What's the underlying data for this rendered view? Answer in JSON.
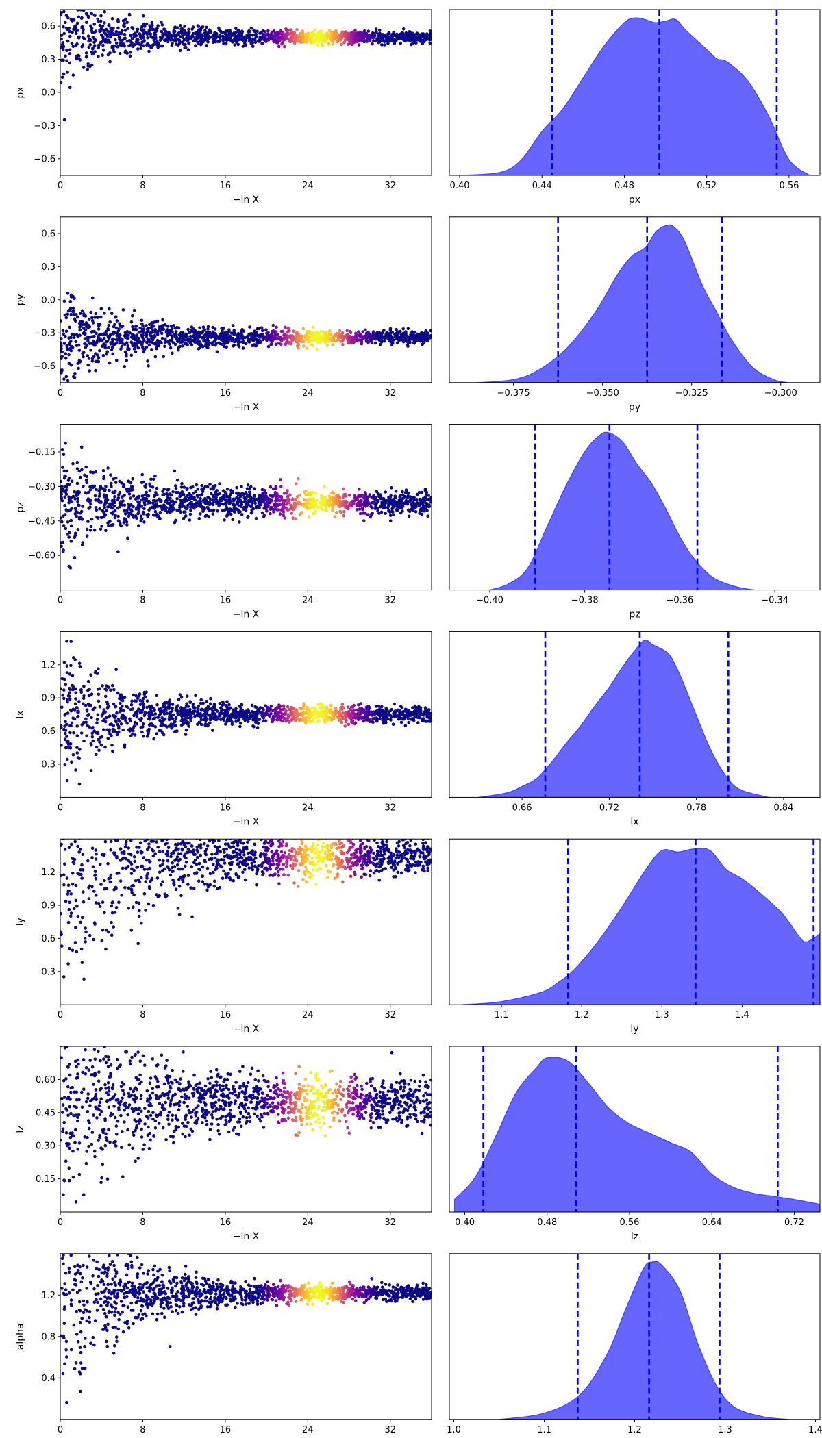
{
  "chart_data": [
    {
      "param": "px",
      "type": "scatter",
      "xlabel": "−ln X",
      "ylabel": "px",
      "xlim": [
        0,
        36
      ],
      "xticks": [
        0,
        8,
        16,
        24,
        32
      ],
      "ylim": [
        -0.75,
        0.75
      ],
      "yticks": [
        -0.6,
        -0.3,
        0.0,
        0.3,
        0.6
      ],
      "ytick_labels": [
        "−0.6",
        "−0.3",
        "0.0",
        "0.3",
        "0.6"
      ],
      "converge_value": 0.5,
      "converge_width": 0.03,
      "spread_scale": 0.24,
      "colormap": "plasma",
      "point_color": "#0d0887",
      "density": {
        "type": "area",
        "xlabel": "px",
        "xlim": [
          0.395,
          0.575
        ],
        "xticks": [
          0.4,
          0.44,
          0.48,
          0.52,
          0.56
        ],
        "xtick_labels": [
          "0.40",
          "0.44",
          "0.48",
          "0.52",
          "0.56"
        ],
        "curve": [
          [
            0.4,
            0.0
          ],
          [
            0.42,
            0.02
          ],
          [
            0.43,
            0.1
          ],
          [
            0.44,
            0.28
          ],
          [
            0.45,
            0.42
          ],
          [
            0.46,
            0.62
          ],
          [
            0.47,
            0.82
          ],
          [
            0.48,
            0.97
          ],
          [
            0.485,
            1.0
          ],
          [
            0.49,
            0.99
          ],
          [
            0.495,
            0.97
          ],
          [
            0.5,
            0.98
          ],
          [
            0.505,
            0.99
          ],
          [
            0.51,
            0.92
          ],
          [
            0.52,
            0.8
          ],
          [
            0.525,
            0.74
          ],
          [
            0.53,
            0.72
          ],
          [
            0.54,
            0.6
          ],
          [
            0.55,
            0.38
          ],
          [
            0.56,
            0.1
          ],
          [
            0.57,
            0.0
          ]
        ],
        "quantiles": [
          0.445,
          0.497,
          0.554
        ],
        "color": "#0000ff"
      }
    },
    {
      "param": "py",
      "type": "scatter",
      "xlabel": "−ln X",
      "ylabel": "py",
      "xlim": [
        0,
        36
      ],
      "xticks": [
        0,
        8,
        16,
        24,
        32
      ],
      "ylim": [
        -0.75,
        0.75
      ],
      "yticks": [
        -0.6,
        -0.3,
        0.0,
        0.3,
        0.6
      ],
      "ytick_labels": [
        "−0.6",
        "−0.3",
        "0.0",
        "0.3",
        "0.6"
      ],
      "converge_value": -0.34,
      "converge_width": 0.035,
      "spread_scale": 0.26,
      "colormap": "plasma",
      "point_color": "#0d0887",
      "density": {
        "type": "area",
        "xlabel": "py",
        "xlim": [
          -0.393,
          -0.289
        ],
        "xticks": [
          -0.375,
          -0.35,
          -0.325,
          -0.3
        ],
        "xtick_labels": [
          "−0.375",
          "−0.350",
          "−0.325",
          "−0.300"
        ],
        "curve": [
          [
            -0.385,
            0.0
          ],
          [
            -0.375,
            0.02
          ],
          [
            -0.368,
            0.08
          ],
          [
            -0.36,
            0.22
          ],
          [
            -0.352,
            0.45
          ],
          [
            -0.346,
            0.68
          ],
          [
            -0.342,
            0.8
          ],
          [
            -0.338,
            0.86
          ],
          [
            -0.335,
            0.96
          ],
          [
            -0.332,
            1.0
          ],
          [
            -0.33,
            0.99
          ],
          [
            -0.327,
            0.9
          ],
          [
            -0.322,
            0.62
          ],
          [
            -0.318,
            0.45
          ],
          [
            -0.314,
            0.28
          ],
          [
            -0.308,
            0.1
          ],
          [
            -0.302,
            0.02
          ],
          [
            -0.298,
            0.0
          ]
        ],
        "quantiles": [
          -0.3625,
          -0.3375,
          -0.3165
        ],
        "color": "#0000ff"
      }
    },
    {
      "param": "pz",
      "type": "scatter",
      "xlabel": "−ln X",
      "ylabel": "pz",
      "xlim": [
        0,
        36
      ],
      "xticks": [
        0,
        8,
        16,
        24,
        32
      ],
      "ylim": [
        -0.75,
        -0.03
      ],
      "yticks": [
        -0.6,
        -0.45,
        -0.3,
        -0.15
      ],
      "ytick_labels": [
        "−0.60",
        "−0.45",
        "−0.30",
        "−0.15"
      ],
      "converge_value": -0.37,
      "converge_width": 0.03,
      "spread_scale": 0.14,
      "colormap": "plasma",
      "point_color": "#0d0887",
      "density": {
        "type": "area",
        "xlabel": "pz",
        "xlim": [
          -0.4085,
          -0.3305
        ],
        "xticks": [
          -0.4,
          -0.38,
          -0.36,
          -0.34
        ],
        "xtick_labels": [
          "−0.40",
          "−0.38",
          "−0.36",
          "−0.34"
        ],
        "curve": [
          [
            -0.4,
            0.0
          ],
          [
            -0.396,
            0.04
          ],
          [
            -0.392,
            0.14
          ],
          [
            -0.388,
            0.4
          ],
          [
            -0.384,
            0.66
          ],
          [
            -0.38,
            0.88
          ],
          [
            -0.377,
            0.98
          ],
          [
            -0.375,
            1.0
          ],
          [
            -0.372,
            0.94
          ],
          [
            -0.369,
            0.8
          ],
          [
            -0.366,
            0.68
          ],
          [
            -0.363,
            0.52
          ],
          [
            -0.36,
            0.34
          ],
          [
            -0.357,
            0.2
          ],
          [
            -0.353,
            0.08
          ],
          [
            -0.348,
            0.02
          ],
          [
            -0.344,
            0.0
          ]
        ],
        "quantiles": [
          -0.3905,
          -0.3748,
          -0.3563
        ],
        "color": "#0000ff"
      }
    },
    {
      "param": "lx",
      "type": "scatter",
      "xlabel": "−ln X",
      "ylabel": "lx",
      "xlim": [
        0,
        36
      ],
      "xticks": [
        0,
        8,
        16,
        24,
        32
      ],
      "ylim": [
        0,
        1.5
      ],
      "yticks": [
        0.3,
        0.6,
        0.9,
        1.2
      ],
      "ytick_labels": [
        "0.3",
        "0.6",
        "0.9",
        "1.2"
      ],
      "converge_value": 0.75,
      "converge_width": 0.04,
      "spread_scale": 0.35,
      "colormap": "plasma",
      "point_color": "#0d0887",
      "density": {
        "type": "area",
        "xlabel": "lx",
        "xlim": [
          0.61,
          0.865
        ],
        "xticks": [
          0.66,
          0.72,
          0.78,
          0.84
        ],
        "xtick_labels": [
          "0.66",
          "0.72",
          "0.78",
          "0.84"
        ],
        "curve": [
          [
            0.63,
            0.0
          ],
          [
            0.65,
            0.03
          ],
          [
            0.66,
            0.07
          ],
          [
            0.67,
            0.12
          ],
          [
            0.68,
            0.22
          ],
          [
            0.69,
            0.34
          ],
          [
            0.7,
            0.45
          ],
          [
            0.71,
            0.58
          ],
          [
            0.72,
            0.7
          ],
          [
            0.73,
            0.84
          ],
          [
            0.74,
            0.96
          ],
          [
            0.745,
            1.0
          ],
          [
            0.75,
            0.97
          ],
          [
            0.76,
            0.92
          ],
          [
            0.765,
            0.85
          ],
          [
            0.77,
            0.75
          ],
          [
            0.78,
            0.52
          ],
          [
            0.79,
            0.3
          ],
          [
            0.8,
            0.14
          ],
          [
            0.81,
            0.05
          ],
          [
            0.83,
            0.0
          ]
        ],
        "quantiles": [
          0.676,
          0.741,
          0.802
        ],
        "color": "#0000ff"
      }
    },
    {
      "param": "ly",
      "type": "scatter",
      "xlabel": "−ln X",
      "ylabel": "ly",
      "xlim": [
        0,
        36
      ],
      "xticks": [
        0,
        8,
        16,
        24,
        32
      ],
      "ylim": [
        0,
        1.5
      ],
      "yticks": [
        0.3,
        0.6,
        0.9,
        1.2
      ],
      "ytick_labels": [
        "0.3",
        "0.6",
        "0.9",
        "1.2"
      ],
      "converge_value": 1.34,
      "converge_width": 0.1,
      "spread_scale": 0.9,
      "colormap": "plasma",
      "point_color": "#0d0887",
      "density": {
        "type": "area",
        "xlabel": "ly",
        "xlim": [
          1.035,
          1.497
        ],
        "xticks": [
          1.1,
          1.2,
          1.3,
          1.4
        ],
        "xtick_labels": [
          "1.1",
          "1.2",
          "1.3",
          "1.4"
        ],
        "curve": [
          [
            1.05,
            0.0
          ],
          [
            1.1,
            0.02
          ],
          [
            1.15,
            0.08
          ],
          [
            1.17,
            0.14
          ],
          [
            1.19,
            0.22
          ],
          [
            1.22,
            0.4
          ],
          [
            1.25,
            0.62
          ],
          [
            1.28,
            0.86
          ],
          [
            1.3,
            0.98
          ],
          [
            1.32,
            0.97
          ],
          [
            1.34,
            0.99
          ],
          [
            1.36,
            0.98
          ],
          [
            1.38,
            0.86
          ],
          [
            1.4,
            0.8
          ],
          [
            1.42,
            0.72
          ],
          [
            1.45,
            0.58
          ],
          [
            1.47,
            0.44
          ],
          [
            1.48,
            0.4
          ],
          [
            1.497,
            0.45
          ]
        ],
        "quantiles": [
          1.183,
          1.342,
          1.489
        ],
        "color": "#0000ff"
      }
    },
    {
      "param": "lz",
      "type": "scatter",
      "xlabel": "−ln X",
      "ylabel": "lz",
      "xlim": [
        0,
        36
      ],
      "xticks": [
        0,
        8,
        16,
        24,
        32
      ],
      "ylim": [
        0,
        0.75
      ],
      "yticks": [
        0.15,
        0.3,
        0.45,
        0.6
      ],
      "ytick_labels": [
        "0.15",
        "0.30",
        "0.45",
        "0.60"
      ],
      "converge_value": 0.5,
      "converge_width": 0.06,
      "spread_scale": 0.3,
      "colormap": "plasma",
      "point_color": "#0d0887",
      "density": {
        "type": "area",
        "xlabel": "lz",
        "xlim": [
          0.385,
          0.745
        ],
        "xticks": [
          0.4,
          0.48,
          0.56,
          0.64,
          0.72
        ],
        "xtick_labels": [
          "0.40",
          "0.48",
          "0.56",
          "0.64",
          "0.72"
        ],
        "curve": [
          [
            0.39,
            0.08
          ],
          [
            0.41,
            0.22
          ],
          [
            0.43,
            0.48
          ],
          [
            0.45,
            0.76
          ],
          [
            0.47,
            0.92
          ],
          [
            0.48,
            0.98
          ],
          [
            0.5,
            0.96
          ],
          [
            0.52,
            0.82
          ],
          [
            0.54,
            0.66
          ],
          [
            0.56,
            0.56
          ],
          [
            0.58,
            0.5
          ],
          [
            0.6,
            0.44
          ],
          [
            0.62,
            0.38
          ],
          [
            0.64,
            0.24
          ],
          [
            0.66,
            0.16
          ],
          [
            0.68,
            0.12
          ],
          [
            0.7,
            0.1
          ],
          [
            0.72,
            0.08
          ],
          [
            0.745,
            0.05
          ]
        ],
        "quantiles": [
          0.418,
          0.508,
          0.704
        ],
        "color": "#0000ff"
      }
    },
    {
      "param": "alpha",
      "type": "scatter",
      "xlabel": "−ln X",
      "ylabel": "alpha",
      "xlim": [
        0,
        36
      ],
      "xticks": [
        0,
        8,
        16,
        24,
        32
      ],
      "ylim": [
        0,
        1.6
      ],
      "yticks": [
        0.4,
        0.8,
        1.2
      ],
      "ytick_labels": [
        "0.4",
        "0.8",
        "1.2"
      ],
      "converge_value": 1.22,
      "converge_width": 0.04,
      "spread_scale": 0.6,
      "colormap": "plasma",
      "point_color": "#0d0887",
      "density": {
        "type": "area",
        "xlabel": "alpha",
        "xlim": [
          0.995,
          1.405
        ],
        "xticks": [
          1.0,
          1.1,
          1.2,
          1.3,
          1.4
        ],
        "xtick_labels": [
          "1.0",
          "1.1",
          "1.2",
          "1.3",
          "1.4"
        ],
        "curve": [
          [
            1.05,
            0.0
          ],
          [
            1.1,
            0.04
          ],
          [
            1.14,
            0.16
          ],
          [
            1.17,
            0.42
          ],
          [
            1.19,
            0.7
          ],
          [
            1.21,
            0.96
          ],
          [
            1.22,
            1.0
          ],
          [
            1.23,
            0.98
          ],
          [
            1.25,
            0.82
          ],
          [
            1.27,
            0.48
          ],
          [
            1.29,
            0.22
          ],
          [
            1.31,
            0.08
          ],
          [
            1.34,
            0.02
          ],
          [
            1.37,
            0.0
          ]
        ],
        "quantiles": [
          1.137,
          1.216,
          1.294
        ],
        "color": "#0000ff"
      }
    }
  ]
}
